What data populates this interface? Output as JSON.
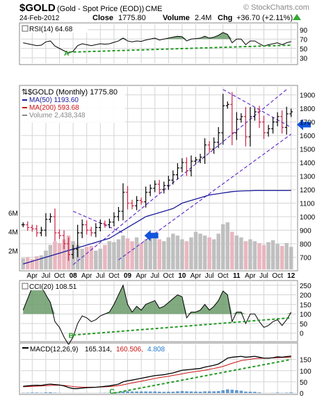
{
  "header": {
    "symbol": "$GOLD",
    "name": "(Gold - Spot Price (EOD))",
    "exchange": "CME",
    "watermark": "© StockCharts.com",
    "date": "24-Feb-2012",
    "close_label": "Close",
    "close_value": "1775.80",
    "volume_label": "Volume",
    "volume_value": "2.4M",
    "chg_label": "Chg",
    "chg_value": "+36.70 (+2.11%)"
  },
  "rsi": {
    "label": "RSI(14) 64.68",
    "ticks": [
      "90",
      "70",
      "50",
      "30"
    ],
    "annotation": "A"
  },
  "price": {
    "title": "$GOLD (Monthly) 1775.80",
    "legend": [
      {
        "label": "MA(50) 1193.60",
        "color": "#1a1a99"
      },
      {
        "label": "MA(200) 593.68",
        "color": "#cc1111"
      },
      {
        "label": "Volume 2,438,348",
        "color": "#888888"
      }
    ],
    "ticks": [
      "1900",
      "1800",
      "1700",
      "1600",
      "1500",
      "1400",
      "1300",
      "1200",
      "1100",
      "1000",
      "900",
      "800",
      "700"
    ],
    "volume_ticks": [
      "6M",
      "4M",
      "2M"
    ],
    "x_labels": [
      {
        "text": "Apr",
        "bold": false
      },
      {
        "text": "Jul",
        "bold": false
      },
      {
        "text": "Oct",
        "bold": false
      },
      {
        "text": "08",
        "bold": true
      },
      {
        "text": "Apr",
        "bold": false
      },
      {
        "text": "Jul",
        "bold": false
      },
      {
        "text": "Oct",
        "bold": false
      },
      {
        "text": "09",
        "bold": true
      },
      {
        "text": "Apr",
        "bold": false
      },
      {
        "text": "Jul",
        "bold": false
      },
      {
        "text": "Oct",
        "bold": false
      },
      {
        "text": "10",
        "bold": true
      },
      {
        "text": "Apr",
        "bold": false
      },
      {
        "text": "Jul",
        "bold": false
      },
      {
        "text": "Oct",
        "bold": false
      },
      {
        "text": "11",
        "bold": true
      },
      {
        "text": "Apr",
        "bold": false
      },
      {
        "text": "Jul",
        "bold": false
      },
      {
        "text": "Oct",
        "bold": false
      },
      {
        "text": "12",
        "bold": true
      }
    ]
  },
  "cci": {
    "label": "CCI(20) 108.51",
    "ticks": [
      "250",
      "200",
      "150",
      "100",
      "50",
      "0"
    ],
    "annotation": "B"
  },
  "macd": {
    "label": "MACD(12,26,9)",
    "v1": "165.314,",
    "v2": "160.506,",
    "v3": "4.808",
    "ticks": [
      "150",
      "100",
      "50",
      "0"
    ],
    "annotation": "C"
  },
  "colors": {
    "up": "#000000",
    "down": "#cc2244",
    "channel": "#6633cc",
    "trend": "#229922",
    "arrow": "#1155dd",
    "fill": "#6b9b6b"
  },
  "chart_data": {
    "type": "line",
    "title": "$GOLD (Monthly) 1775.80",
    "ylim": [
      620,
      1960
    ],
    "months": 60,
    "close": [
      940,
      920,
      910,
      880,
      900,
      980,
      1000,
      880,
      860,
      800,
      720,
      760,
      880,
      940,
      900,
      880,
      920,
      950,
      940,
      960,
      1000,
      1040,
      1180,
      1100,
      1080,
      1120,
      1110,
      1180,
      1210,
      1240,
      1200,
      1230,
      1270,
      1310,
      1360,
      1400,
      1340,
      1410,
      1420,
      1440,
      1530,
      1500,
      1550,
      1620,
      1820,
      1830,
      1620,
      1720,
      1740,
      1590,
      1740,
      1775,
      1700,
      1620,
      1650,
      1700,
      1740,
      1660,
      1760,
      1775
    ],
    "ma50": [
      650,
      660,
      670,
      680,
      690,
      700,
      710,
      720,
      730,
      740,
      750,
      760,
      770,
      780,
      790,
      800,
      810,
      820,
      830,
      840,
      860,
      880,
      900,
      920,
      940,
      960,
      980,
      1000,
      1010,
      1020,
      1030,
      1040,
      1050,
      1060,
      1080,
      1100,
      1110,
      1120,
      1130,
      1140,
      1150,
      1160,
      1165,
      1170,
      1175,
      1180,
      1185,
      1188,
      1190,
      1191,
      1192,
      1193,
      1193,
      1193,
      1193,
      1193,
      1193,
      1193,
      1193,
      1193.6
    ],
    "volume_millions": [
      1.2,
      1.3,
      1.1,
      1.4,
      1.5,
      2.0,
      2.6,
      3.0,
      2.8,
      3.2,
      3.6,
      3.0,
      2.6,
      2.2,
      2.4,
      2.5,
      2.0,
      2.2,
      2.6,
      3.0,
      2.9,
      3.2,
      3.6,
      3.3,
      3.0,
      3.4,
      2.8,
      3.2,
      3.6,
      3.4,
      3.2,
      3.0,
      3.4,
      3.8,
      3.6,
      3.2,
      3.0,
      3.4,
      4.0,
      3.8,
      3.6,
      3.4,
      3.2,
      3.8,
      4.8,
      5.0,
      4.0,
      3.6,
      3.4,
      3.0,
      3.2,
      3.0,
      2.8,
      2.6,
      2.9,
      3.1,
      2.7,
      2.5,
      2.8,
      2.4
    ],
    "rsi": [
      62,
      60,
      58,
      56,
      57,
      64,
      66,
      55,
      50,
      45,
      40,
      44,
      56,
      60,
      58,
      56,
      58,
      60,
      59,
      60,
      63,
      66,
      72,
      66,
      64,
      66,
      65,
      68,
      70,
      72,
      68,
      70,
      72,
      74,
      76,
      75,
      66,
      70,
      71,
      72,
      76,
      72,
      74,
      78,
      84,
      80,
      62,
      70,
      70,
      58,
      66,
      66,
      60,
      55,
      58,
      60,
      62,
      58,
      62,
      64.68
    ],
    "cci": [
      120,
      180,
      240,
      250,
      245,
      200,
      160,
      60,
      30,
      -20,
      -60,
      -20,
      50,
      90,
      80,
      60,
      70,
      90,
      100,
      110,
      150,
      200,
      250,
      150,
      110,
      140,
      120,
      150,
      160,
      170,
      130,
      140,
      160,
      180,
      200,
      190,
      80,
      110,
      110,
      120,
      150,
      120,
      140,
      170,
      220,
      200,
      60,
      110,
      110,
      50,
      100,
      100,
      60,
      30,
      40,
      60,
      70,
      40,
      70,
      108.51
    ],
    "macd": [
      30,
      32,
      34,
      35,
      34,
      38,
      40,
      38,
      36,
      32,
      25,
      20,
      20,
      22,
      24,
      25,
      26,
      28,
      30,
      32,
      36,
      40,
      50,
      55,
      58,
      62,
      66,
      70,
      74,
      78,
      80,
      82,
      86,
      90,
      96,
      102,
      104,
      106,
      108,
      110,
      116,
      120,
      124,
      130,
      142,
      156,
      160,
      162,
      164,
      160,
      162,
      164,
      160,
      156,
      156,
      158,
      162,
      160,
      163,
      165.314
    ],
    "signal": [
      28,
      29,
      30,
      31,
      32,
      33,
      34,
      35,
      35,
      34,
      32,
      29,
      27,
      26,
      26,
      26,
      26,
      27,
      28,
      29,
      31,
      33,
      37,
      41,
      45,
      49,
      53,
      57,
      61,
      65,
      69,
      72,
      75,
      79,
      82,
      86,
      90,
      93,
      96,
      99,
      102,
      106,
      110,
      114,
      119,
      126,
      133,
      139,
      145,
      148,
      151,
      154,
      155,
      156,
      156,
      157,
      158,
      159,
      160,
      160.506
    ]
  }
}
